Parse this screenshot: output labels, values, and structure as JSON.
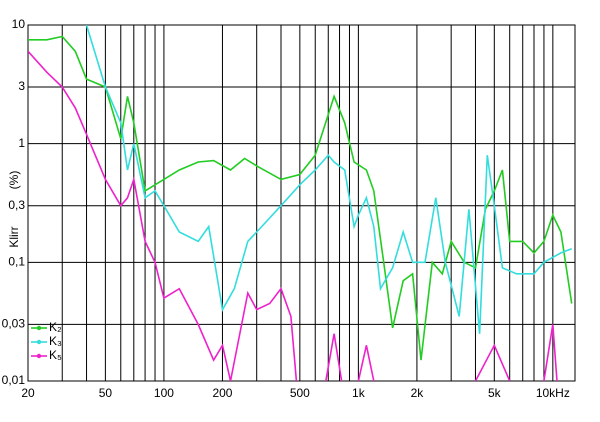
{
  "chart_data": {
    "type": "line",
    "ylabel": "Klirr",
    "yunit": "(%)",
    "xscale": "log",
    "yscale": "log",
    "grid": true,
    "xlim": [
      20,
      13000
    ],
    "ylim": [
      0.01,
      10
    ],
    "xticks": [
      {
        "value": 20,
        "label": "20"
      },
      {
        "value": 50,
        "label": "50"
      },
      {
        "value": 100,
        "label": "100"
      },
      {
        "value": 200,
        "label": "200"
      },
      {
        "value": 500,
        "label": "500"
      },
      {
        "value": 1000,
        "label": "1k"
      },
      {
        "value": 2000,
        "label": "2k"
      },
      {
        "value": 5000,
        "label": "5k"
      },
      {
        "value": 10000,
        "label": "10kHz"
      }
    ],
    "xgrid": [
      30,
      40,
      60,
      70,
      80,
      90,
      300,
      400,
      600,
      700,
      800,
      900,
      3000,
      4000,
      6000,
      7000,
      8000,
      9000
    ],
    "yticks": [
      10,
      3,
      1,
      {
        "value": 0.3,
        "label": "0,3"
      },
      {
        "value": 0.1,
        "label": "0,1"
      },
      {
        "value": 0.03,
        "label": "0,03"
      },
      {
        "value": 0.01,
        "label": "0,01"
      }
    ],
    "series": [
      {
        "name": "K₂",
        "color": "#22cc22",
        "x": [
          20,
          25,
          30,
          35,
          40,
          50,
          60,
          65,
          70,
          80,
          90,
          100,
          120,
          150,
          180,
          220,
          260,
          300,
          400,
          500,
          600,
          750,
          850,
          950,
          1100,
          1200,
          1350,
          1500,
          1700,
          1900,
          2100,
          2400,
          2700,
          3000,
          3500,
          4000,
          4500,
          5000,
          5500,
          6000,
          7000,
          8000,
          9000,
          10000,
          11000,
          12500
        ],
        "values": [
          7.5,
          7.5,
          8,
          6,
          3.5,
          3,
          1.1,
          2.5,
          1.5,
          0.4,
          0.45,
          0.5,
          0.6,
          0.7,
          0.72,
          0.6,
          0.75,
          0.65,
          0.5,
          0.55,
          0.8,
          2.5,
          1.5,
          0.7,
          0.6,
          0.4,
          0.1,
          0.028,
          0.07,
          0.08,
          0.015,
          0.1,
          0.08,
          0.15,
          0.1,
          0.09,
          0.28,
          0.4,
          0.6,
          0.15,
          0.15,
          0.12,
          0.15,
          0.25,
          0.18,
          0.045
        ]
      },
      {
        "name": "K₃",
        "color": "#33dddd",
        "x": [
          40,
          50,
          60,
          65,
          70,
          80,
          90,
          100,
          120,
          150,
          170,
          200,
          230,
          270,
          300,
          400,
          500,
          600,
          700,
          750,
          850,
          950,
          1000,
          1100,
          1200,
          1300,
          1500,
          1700,
          1900,
          2200,
          2500,
          2800,
          3300,
          3700,
          4200,
          4600,
          5000,
          5500,
          6500,
          8000,
          9000,
          11000,
          12500
        ],
        "values": [
          10,
          3,
          1.5,
          0.6,
          1,
          0.35,
          0.4,
          0.3,
          0.18,
          0.15,
          0.2,
          0.04,
          0.06,
          0.15,
          0.18,
          0.3,
          0.45,
          0.6,
          0.8,
          0.7,
          0.6,
          0.2,
          0.25,
          0.35,
          0.2,
          0.06,
          0.09,
          0.18,
          0.1,
          0.1,
          0.35,
          0.1,
          0.035,
          0.28,
          0.025,
          0.8,
          0.3,
          0.09,
          0.08,
          0.08,
          0.1,
          0.12,
          0.13
        ]
      },
      {
        "name": "K₅",
        "color": "#ee22cc",
        "x": [
          20,
          25,
          30,
          35,
          40,
          50,
          60,
          65,
          70,
          80,
          90,
          100,
          120,
          150,
          180,
          200,
          220,
          270,
          300,
          350,
          400,
          450,
          480,
          600,
          680,
          750,
          820,
          900,
          1000,
          1100,
          1200,
          2000,
          4000,
          5000,
          6000,
          8000,
          9000,
          10000,
          10500
        ],
        "values": [
          6,
          4,
          3,
          2,
          1.2,
          0.5,
          0.3,
          0.35,
          0.5,
          0.15,
          0.1,
          0.05,
          0.06,
          0.03,
          0.015,
          0.02,
          0.01,
          0.055,
          0.04,
          0.045,
          0.06,
          0.035,
          0.01,
          null,
          0.01,
          0.025,
          0.01,
          null,
          0.01,
          0.02,
          0.01,
          null,
          0.01,
          0.02,
          0.01,
          null,
          0.01,
          0.03,
          0.01
        ]
      }
    ]
  }
}
